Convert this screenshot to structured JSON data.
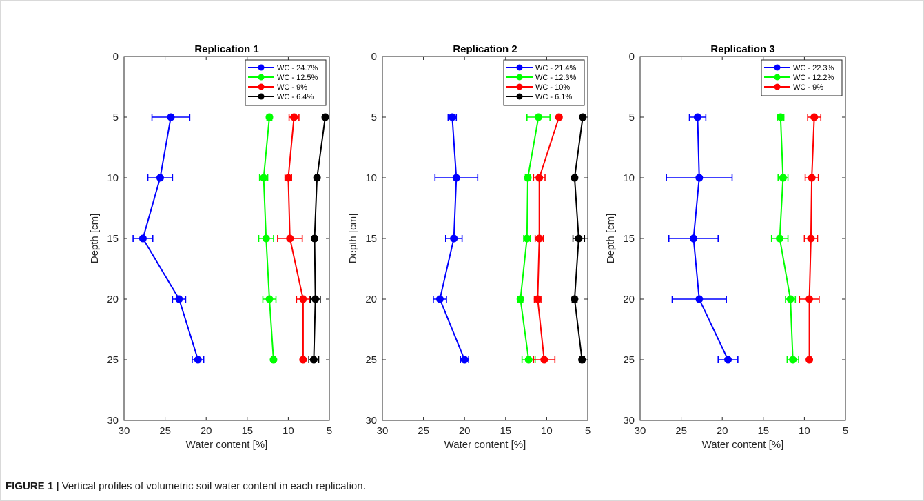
{
  "figure": {
    "caption_label": "FIGURE 1 |",
    "caption_text": "Vertical profiles of volumetric soil water content in each replication."
  },
  "chart_data": [
    {
      "type": "line",
      "title": "Replication 1",
      "xlabel": "Water content [%]",
      "ylabel": "Depth [cm]",
      "xlim": [
        5,
        30
      ],
      "x_reversed": true,
      "ylim": [
        0,
        30
      ],
      "y_reversed": true,
      "xticks": [
        30,
        25,
        20,
        15,
        10,
        5
      ],
      "yticks": [
        0,
        5,
        10,
        15,
        20,
        25,
        30
      ],
      "grid": false,
      "legend": "top-right",
      "depths": [
        5,
        10,
        15,
        20,
        25
      ],
      "series": [
        {
          "name": "WC - 24.7%",
          "color": "#0000ff",
          "values": [
            24.3,
            25.6,
            27.7,
            23.3,
            21.0
          ],
          "errors": [
            2.3,
            1.5,
            1.2,
            0.8,
            0.7
          ]
        },
        {
          "name": "WC - 12.5%",
          "color": "#00ff00",
          "values": [
            12.3,
            13.0,
            12.7,
            12.3,
            11.8
          ],
          "errors": [
            0.3,
            0.5,
            0.9,
            0.8,
            0.2
          ]
        },
        {
          "name": "WC - 9%",
          "color": "#ff0000",
          "values": [
            9.3,
            10.0,
            9.8,
            8.2,
            8.2
          ],
          "errors": [
            0.6,
            0.4,
            1.5,
            0.8,
            0.2
          ]
        },
        {
          "name": "WC - 6.4%",
          "color": "#000000",
          "values": [
            5.5,
            6.5,
            6.8,
            6.7,
            6.9
          ],
          "errors": [
            0.2,
            0.2,
            0.2,
            0.6,
            0.6
          ]
        }
      ]
    },
    {
      "type": "line",
      "title": "Replication 2",
      "xlabel": "Water content [%]",
      "ylabel": "Depth [cm]",
      "xlim": [
        5,
        30
      ],
      "x_reversed": true,
      "ylim": [
        0,
        30
      ],
      "y_reversed": true,
      "xticks": [
        30,
        25,
        20,
        15,
        10,
        5
      ],
      "yticks": [
        0,
        5,
        10,
        15,
        20,
        25,
        30
      ],
      "grid": false,
      "legend": "top-right",
      "depths": [
        5,
        10,
        15,
        20,
        25
      ],
      "series": [
        {
          "name": "WC - 21.4%",
          "color": "#0000ff",
          "values": [
            21.5,
            21.0,
            21.3,
            23.0,
            20.0
          ],
          "errors": [
            0.5,
            2.6,
            1.0,
            0.8,
            0.5
          ]
        },
        {
          "name": "WC - 12.3%",
          "color": "#00ff00",
          "values": [
            11.0,
            12.3,
            12.4,
            13.2,
            12.2
          ],
          "errors": [
            1.4,
            0.3,
            0.4,
            0.3,
            0.8
          ]
        },
        {
          "name": "WC - 10%",
          "color": "#ff0000",
          "values": [
            8.5,
            10.9,
            10.9,
            11.1,
            10.3
          ],
          "errors": [
            0.2,
            0.7,
            0.5,
            0.4,
            1.3
          ]
        },
        {
          "name": "WC - 6.1%",
          "color": "#000000",
          "values": [
            5.6,
            6.6,
            6.1,
            6.6,
            5.7
          ],
          "errors": [
            0.2,
            0.2,
            0.7,
            0.3,
            0.3
          ]
        }
      ]
    },
    {
      "type": "line",
      "title": "Replication 3",
      "xlabel": "Water content [%]",
      "ylabel": "Depth [cm]",
      "xlim": [
        5,
        30
      ],
      "x_reversed": true,
      "ylim": [
        0,
        30
      ],
      "y_reversed": true,
      "xticks": [
        30,
        25,
        20,
        15,
        10,
        5
      ],
      "yticks": [
        0,
        5,
        10,
        15,
        20,
        25,
        30
      ],
      "grid": false,
      "legend": "top-right",
      "depths": [
        5,
        10,
        15,
        20,
        25
      ],
      "series": [
        {
          "name": "WC - 22.3%",
          "color": "#0000ff",
          "values": [
            23.0,
            22.8,
            23.5,
            22.8,
            19.3
          ],
          "errors": [
            1.0,
            4.0,
            3.0,
            3.3,
            1.2
          ]
        },
        {
          "name": "WC - 12.2%",
          "color": "#00ff00",
          "values": [
            12.9,
            12.6,
            13.0,
            11.7,
            11.4
          ],
          "errors": [
            0.4,
            0.6,
            1.0,
            0.6,
            0.7
          ]
        },
        {
          "name": "WC - 9%",
          "color": "#ff0000",
          "values": [
            8.8,
            9.1,
            9.2,
            9.4,
            9.4
          ],
          "errors": [
            0.8,
            0.8,
            0.8,
            1.2,
            0.2
          ]
        }
      ]
    }
  ]
}
